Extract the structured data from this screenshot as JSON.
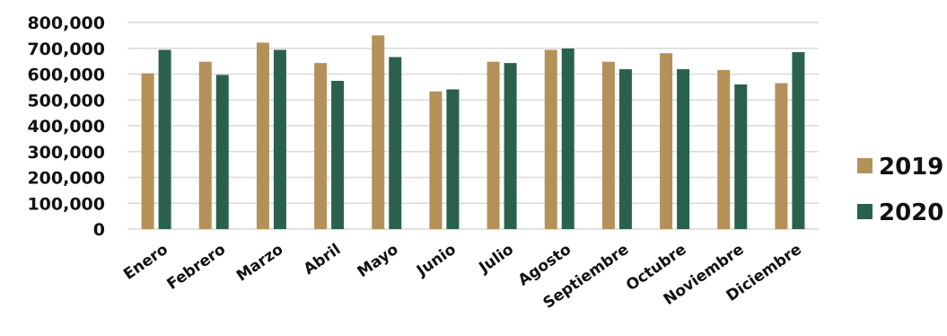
{
  "chart_data": {
    "type": "bar",
    "title": "",
    "xlabel": "",
    "ylabel": "",
    "categories": [
      "Enero",
      "Febrero",
      "Marzo",
      "Abril",
      "Mayo",
      "Junio",
      "Julio",
      "Agosto",
      "Septiembre",
      "Octubre",
      "Noviembre",
      "Diciembre"
    ],
    "series": [
      {
        "name": "2019",
        "color": "#b5915a",
        "values": [
          603000,
          648000,
          722000,
          643000,
          750000,
          533000,
          648000,
          694000,
          648000,
          681000,
          616000,
          565000
        ]
      },
      {
        "name": "2020",
        "color": "#2a614d",
        "values": [
          694000,
          597000,
          694000,
          574000,
          666000,
          541000,
          643000,
          699000,
          619000,
          619000,
          560000,
          685000
        ]
      }
    ],
    "ylim": [
      0,
      800000
    ],
    "yticks": [
      "0",
      "100,000",
      "200,000",
      "300,000",
      "400,000",
      "500,000",
      "600,000",
      "700,000",
      "800,000"
    ],
    "grid": true,
    "legend_position": "right"
  }
}
